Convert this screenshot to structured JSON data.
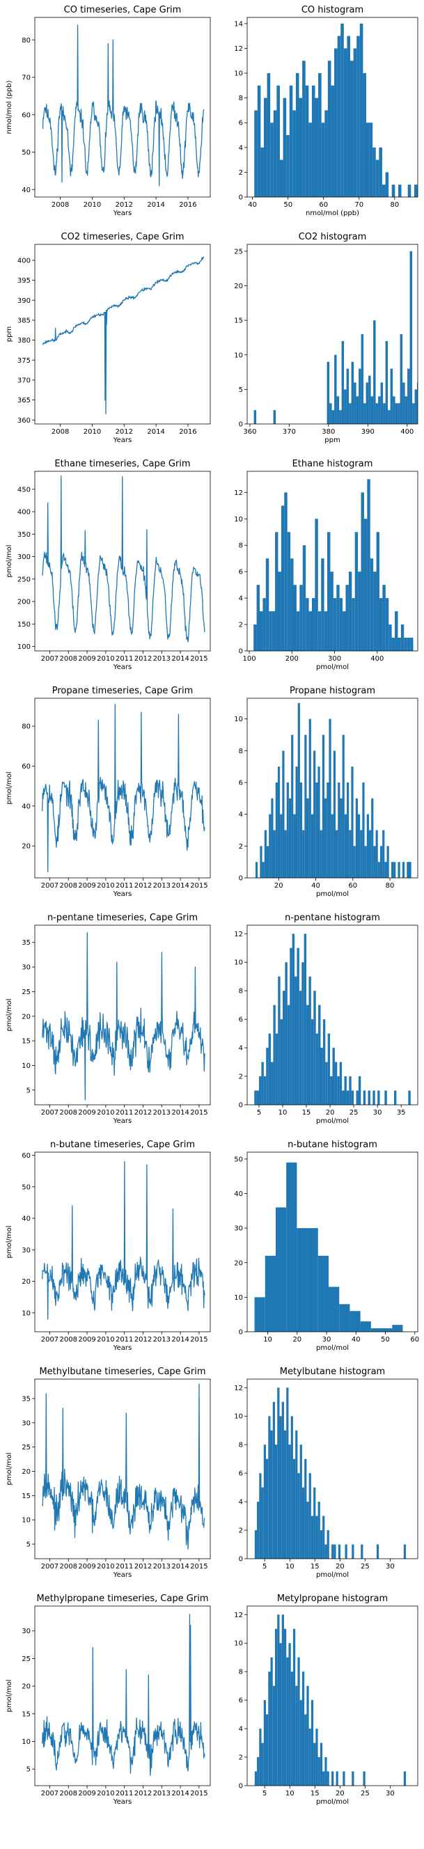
{
  "colors": {
    "series": "#1f77b4",
    "axis": "#000000",
    "background": "#ffffff"
  },
  "chart_data": [
    {
      "type": "line",
      "title": "CO timeseries, Cape Grim",
      "xlabel": "Years",
      "ylabel": "nmol/mol (ppb)",
      "xlim": [
        2006.4,
        2017.4
      ],
      "ylim": [
        38,
        86
      ],
      "xticks": [
        2008,
        2010,
        2012,
        2014,
        2016
      ],
      "yticks": [
        40,
        50,
        60,
        70,
        80
      ],
      "generator": {
        "kind": "seasonal",
        "t0": 2006.9,
        "t1": 2017.0,
        "n": 430,
        "base": 55,
        "trend": 0,
        "amp": 8,
        "period": 1.0,
        "noise": 3.0,
        "seed": 11
      },
      "spikes": [
        [
          2009.1,
          84
        ],
        [
          2011.0,
          79
        ],
        [
          2011.3,
          80
        ],
        [
          2008.1,
          42
        ],
        [
          2014.2,
          41
        ]
      ]
    },
    {
      "type": "histogram",
      "title": "CO histogram",
      "xlabel": "nmol/mol (ppb)",
      "ylabel": "",
      "xlim": [
        38.5,
        86.5
      ],
      "ylim": [
        0,
        14.5
      ],
      "xticks": [
        40,
        50,
        60,
        70,
        80
      ],
      "yticks": [
        0,
        2,
        4,
        6,
        8,
        10,
        12,
        14
      ],
      "bin_start": 40.5,
      "bin_width": 0.9,
      "counts": [
        7,
        9,
        4,
        8,
        10,
        6,
        7,
        9,
        3,
        8,
        5,
        9,
        7,
        10,
        8,
        11,
        9,
        6,
        9,
        8,
        10,
        6,
        7,
        11,
        9,
        12,
        13,
        14,
        12,
        13,
        11,
        12,
        13,
        14,
        10,
        6,
        6,
        4,
        3,
        4,
        1,
        2,
        0,
        1,
        0,
        1,
        0,
        0,
        1,
        0,
        1,
        0,
        0,
        0,
        1,
        0,
        0,
        0,
        0,
        1,
        0,
        0,
        0,
        0,
        0,
        0,
        1,
        0,
        0,
        0,
        1,
        0,
        0,
        1,
        0,
        0,
        0,
        0,
        0,
        0,
        0,
        0,
        0,
        0,
        0,
        0,
        0,
        0,
        0,
        0,
        0,
        0,
        0,
        0,
        0,
        0,
        0,
        0,
        0,
        0,
        0,
        0,
        0,
        0,
        1
      ]
    },
    {
      "type": "line",
      "title": "CO2 timeseries, Cape Grim",
      "xlabel": "Years",
      "ylabel": "ppm",
      "xlim": [
        2006.4,
        2017.4
      ],
      "ylim": [
        359,
        404
      ],
      "xticks": [
        2008,
        2010,
        2012,
        2014,
        2016
      ],
      "yticks": [
        360,
        365,
        370,
        375,
        380,
        385,
        390,
        395,
        400
      ],
      "generator": {
        "kind": "seasonal",
        "t0": 2006.9,
        "t1": 2017.0,
        "n": 420,
        "base": 378.8,
        "trend": 2.15,
        "amp": 0.4,
        "period": 1.0,
        "noise": 0.5,
        "seed": 23
      },
      "spikes": [
        [
          2010.8,
          365
        ],
        [
          2010.85,
          361.5
        ],
        [
          2010.9,
          384
        ],
        [
          2007.7,
          383
        ]
      ]
    },
    {
      "type": "histogram",
      "title": "CO2 histogram",
      "xlabel": "ppm",
      "ylabel": "",
      "xlim": [
        359.3,
        402.7
      ],
      "ylim": [
        0,
        26
      ],
      "xticks": [
        360,
        370,
        380,
        390,
        400
      ],
      "yticks": [
        0,
        5,
        10,
        15,
        20,
        25
      ],
      "bin_start": 361,
      "bin_width": 0.62,
      "counts": [
        2,
        0,
        0,
        0,
        0,
        0,
        0,
        0,
        2,
        0,
        0,
        0,
        0,
        0,
        0,
        0,
        0,
        0,
        0,
        0,
        0,
        0,
        0,
        0,
        0,
        0,
        0,
        0,
        0,
        0,
        9,
        3,
        2,
        10,
        4,
        2,
        12,
        5,
        8,
        3,
        9,
        6,
        4,
        8,
        13,
        3,
        6,
        7,
        4,
        15,
        3,
        4,
        6,
        3,
        12,
        2,
        8,
        4,
        3,
        3,
        13,
        6,
        4,
        8,
        25,
        3,
        5,
        6,
        10,
        4,
        9,
        3,
        7,
        4,
        15,
        4,
        3,
        6,
        4,
        5
      ]
    },
    {
      "type": "line",
      "title": "Ethane timeseries, Cape Grim",
      "xlabel": "Years",
      "ylabel": "pmol/mol",
      "xlim": [
        2006.2,
        2015.6
      ],
      "ylim": [
        90,
        490
      ],
      "xticks": [
        2007,
        2008,
        2009,
        2010,
        2011,
        2012,
        2013,
        2014,
        2015
      ],
      "yticks": [
        100,
        150,
        200,
        250,
        300,
        350,
        400,
        450
      ],
      "generator": {
        "kind": "seasonal",
        "t0": 2006.6,
        "t1": 2015.3,
        "n": 380,
        "base": 240,
        "trend": -3,
        "amp": 75,
        "period": 1.0,
        "noise": 18,
        "seed": 37
      },
      "spikes": [
        [
          2006.9,
          420
        ],
        [
          2007.6,
          480
        ],
        [
          2010.9,
          478
        ],
        [
          2012.2,
          360
        ],
        [
          2008.9,
          358
        ]
      ]
    },
    {
      "type": "histogram",
      "title": "Ethane histogram",
      "xlabel": "pmol/mol",
      "ylabel": "",
      "xlim": [
        95,
        495
      ],
      "ylim": [
        0,
        13.6
      ],
      "xticks": [
        100,
        200,
        300,
        400
      ],
      "yticks": [
        0,
        2,
        4,
        6,
        8,
        10,
        12
      ],
      "bin_start": 110,
      "bin_width": 7.2,
      "counts": [
        2,
        5,
        3,
        4,
        7,
        3,
        3,
        9,
        6,
        11,
        12,
        9,
        7,
        5,
        3,
        5,
        8,
        4,
        3,
        4,
        10,
        3,
        7,
        3,
        9,
        6,
        4,
        5,
        4,
        3,
        5,
        6,
        4,
        9,
        6,
        12,
        10,
        13,
        7,
        6,
        9,
        4,
        5,
        4,
        2,
        1,
        3,
        1,
        2,
        1,
        1,
        1,
        0,
        0,
        1,
        0,
        0,
        1,
        0,
        0,
        0,
        0,
        0,
        0,
        0,
        0,
        0,
        0,
        0,
        0,
        1
      ]
    },
    {
      "type": "line",
      "title": "Propane timeseries, Cape Grim",
      "xlabel": "Years",
      "ylabel": "pmol/mol",
      "xlim": [
        2006.2,
        2015.6
      ],
      "ylim": [
        4,
        94
      ],
      "xticks": [
        2007,
        2008,
        2009,
        2010,
        2011,
        2012,
        2013,
        2014,
        2015
      ],
      "yticks": [
        20,
        40,
        60,
        80
      ],
      "generator": {
        "kind": "seasonal",
        "t0": 2006.6,
        "t1": 2015.3,
        "n": 380,
        "base": 40,
        "trend": 0,
        "amp": 12,
        "period": 1.0,
        "noise": 9,
        "seed": 53
      },
      "spikes": [
        [
          2010.5,
          91
        ],
        [
          2011.9,
          87
        ],
        [
          2006.9,
          7
        ],
        [
          2013.9,
          86
        ],
        [
          2009.6,
          83
        ]
      ]
    },
    {
      "type": "histogram",
      "title": "Propane histogram",
      "xlabel": "pmol/mol",
      "ylabel": "",
      "xlim": [
        3,
        95
      ],
      "ylim": [
        0,
        11.3
      ],
      "xticks": [
        20,
        40,
        60,
        80
      ],
      "yticks": [
        0,
        2,
        4,
        6,
        8,
        10
      ],
      "bin_start": 7.5,
      "bin_width": 1.2,
      "counts": [
        1,
        0,
        2,
        1,
        3,
        2,
        4,
        5,
        3,
        6,
        7,
        4,
        8,
        3,
        6,
        5,
        9,
        4,
        7,
        11,
        6,
        3,
        9,
        5,
        10,
        4,
        8,
        6,
        7,
        3,
        9,
        5,
        6,
        10,
        4,
        8,
        3,
        6,
        5,
        9,
        4,
        6,
        3,
        7,
        2,
        5,
        4,
        3,
        6,
        2,
        4,
        3,
        5,
        2,
        3,
        1,
        2,
        3,
        1,
        2,
        0,
        1,
        1,
        0,
        1,
        0,
        1,
        0,
        1,
        1
      ]
    },
    {
      "type": "line",
      "title": "n-pentane timeseries, Cape Grim",
      "xlabel": "Years",
      "ylabel": "pmol/mol",
      "xlim": [
        2006.2,
        2015.6
      ],
      "ylim": [
        2,
        38.5
      ],
      "xticks": [
        2007,
        2008,
        2009,
        2010,
        2011,
        2012,
        2013,
        2014,
        2015
      ],
      "yticks": [
        5,
        10,
        15,
        20,
        25,
        30,
        35
      ],
      "generator": {
        "kind": "seasonal",
        "t0": 2006.6,
        "t1": 2015.3,
        "n": 380,
        "base": 15,
        "trend": 0,
        "amp": 3,
        "period": 1.0,
        "noise": 5,
        "seed": 71
      },
      "spikes": [
        [
          2009.0,
          37
        ],
        [
          2013.0,
          33
        ],
        [
          2010.6,
          31
        ],
        [
          2014.8,
          30
        ],
        [
          2008.9,
          3
        ]
      ]
    },
    {
      "type": "histogram",
      "title": "n-pentane histogram",
      "xlabel": "pmol/mol",
      "ylabel": "",
      "xlim": [
        2.5,
        38.5
      ],
      "ylim": [
        0,
        12.6
      ],
      "xticks": [
        5,
        10,
        15,
        20,
        25,
        30,
        35
      ],
      "yticks": [
        0,
        2,
        4,
        6,
        8,
        10,
        12
      ],
      "bin_start": 4,
      "bin_width": 0.5,
      "counts": [
        1,
        1,
        2,
        3,
        2,
        4,
        5,
        3,
        7,
        5,
        9,
        6,
        8,
        10,
        7,
        11,
        12,
        9,
        11,
        8,
        10,
        12,
        7,
        9,
        6,
        8,
        5,
        7,
        4,
        6,
        3,
        5,
        2,
        4,
        3,
        2,
        3,
        1,
        2,
        1,
        2,
        1,
        0,
        1,
        2,
        0,
        1,
        0,
        1,
        0,
        1,
        0,
        1,
        0,
        0,
        1,
        0,
        0,
        0,
        1,
        0,
        0,
        0,
        0,
        0,
        1
      ]
    },
    {
      "type": "line",
      "title": "n-butane timeseries, Cape Grim",
      "xlabel": "Years",
      "ylabel": "pmol/mol",
      "xlim": [
        2006.2,
        2015.6
      ],
      "ylim": [
        4,
        61
      ],
      "xticks": [
        2007,
        2008,
        2009,
        2010,
        2011,
        2012,
        2013,
        2014,
        2015
      ],
      "yticks": [
        10,
        20,
        30,
        40,
        50,
        60
      ],
      "generator": {
        "kind": "seasonal",
        "t0": 2006.6,
        "t1": 2015.3,
        "n": 380,
        "base": 20,
        "trend": 0,
        "amp": 4,
        "period": 1.0,
        "noise": 7,
        "seed": 89
      },
      "spikes": [
        [
          2011.0,
          58
        ],
        [
          2012.2,
          57
        ],
        [
          2008.2,
          44
        ],
        [
          2013.6,
          43
        ],
        [
          2006.9,
          8
        ]
      ]
    },
    {
      "type": "histogram",
      "title": "n-butane histogram",
      "xlabel": "pmol/mol",
      "ylabel": "",
      "xlim": [
        3,
        61
      ],
      "ylim": [
        0,
        52
      ],
      "xticks": [
        10,
        20,
        30,
        40,
        50,
        60
      ],
      "yticks": [
        0,
        10,
        20,
        30,
        40,
        50
      ],
      "bin_start": 5.5,
      "bin_width": 3.6,
      "counts": [
        10,
        22,
        36,
        49,
        30,
        30,
        22,
        13,
        8,
        6,
        3,
        1,
        1,
        2
      ]
    },
    {
      "type": "line",
      "title": "Methylbutane timeseries, Cape Grim",
      "xlabel": "Years",
      "ylabel": "pmol/mol",
      "xlim": [
        2006.2,
        2015.6
      ],
      "ylim": [
        2,
        39
      ],
      "xticks": [
        2007,
        2008,
        2009,
        2010,
        2011,
        2012,
        2013,
        2014,
        2015
      ],
      "yticks": [
        5,
        10,
        15,
        20,
        25,
        30,
        35
      ],
      "generator": {
        "kind": "seasonal",
        "t0": 2006.6,
        "t1": 2015.3,
        "n": 380,
        "base": 15,
        "trend": -0.4,
        "amp": 3,
        "period": 1.0,
        "noise": 5,
        "seed": 97
      },
      "spikes": [
        [
          2006.8,
          36
        ],
        [
          2015.0,
          38
        ],
        [
          2007.7,
          33
        ],
        [
          2014.4,
          4
        ],
        [
          2011.1,
          32
        ]
      ]
    },
    {
      "type": "histogram",
      "title": "Metylbutane histogram",
      "xlabel": "pmol/mol",
      "ylabel": "",
      "xlim": [
        1.5,
        35.5
      ],
      "ylim": [
        0,
        12.6
      ],
      "xticks": [
        5,
        10,
        15,
        20,
        25,
        30
      ],
      "yticks": [
        0,
        2,
        4,
        6,
        8,
        10,
        12
      ],
      "bin_start": 3,
      "bin_width": 0.45,
      "counts": [
        2,
        4,
        6,
        5,
        8,
        7,
        10,
        9,
        11,
        8,
        12,
        10,
        11,
        9,
        12,
        8,
        10,
        7,
        9,
        6,
        8,
        5,
        7,
        4,
        6,
        3,
        5,
        3,
        4,
        2,
        3,
        1,
        2,
        0,
        1,
        1,
        0,
        1,
        0,
        0,
        1,
        0,
        0,
        1,
        0,
        0,
        0,
        1,
        0,
        0,
        0,
        0,
        0,
        0,
        1,
        0,
        0,
        0,
        0,
        0,
        0,
        0,
        0,
        0,
        0,
        0,
        1
      ]
    },
    {
      "type": "line",
      "title": "Methylpropane timeseries, Cape Grim",
      "xlabel": "Years",
      "ylabel": "pmol/mol",
      "xlim": [
        2006.2,
        2015.6
      ],
      "ylim": [
        2,
        34.5
      ],
      "xticks": [
        2007,
        2008,
        2009,
        2010,
        2011,
        2012,
        2013,
        2014,
        2015
      ],
      "yticks": [
        5,
        10,
        15,
        20,
        25,
        30
      ],
      "generator": {
        "kind": "seasonal",
        "t0": 2006.6,
        "t1": 2015.3,
        "n": 380,
        "base": 10,
        "trend": 0,
        "amp": 2.5,
        "period": 1.0,
        "noise": 3.5,
        "seed": 113
      },
      "spikes": [
        [
          2014.5,
          33
        ],
        [
          2014.55,
          31
        ],
        [
          2009.3,
          27
        ],
        [
          2011.1,
          23
        ],
        [
          2012.3,
          22
        ]
      ]
    },
    {
      "type": "histogram",
      "title": "Metylpropane histogram",
      "xlabel": "pmol/mol",
      "ylabel": "",
      "xlim": [
        1.5,
        35.5
      ],
      "ylim": [
        0,
        12.6
      ],
      "xticks": [
        5,
        10,
        15,
        20,
        25,
        30
      ],
      "yticks": [
        0,
        2,
        4,
        6,
        8,
        10,
        12
      ],
      "bin_start": 3,
      "bin_width": 0.45,
      "counts": [
        1,
        2,
        4,
        3,
        6,
        5,
        8,
        9,
        7,
        11,
        12,
        10,
        12,
        11,
        9,
        10,
        8,
        11,
        7,
        9,
        6,
        8,
        5,
        7,
        4,
        6,
        3,
        4,
        2,
        3,
        1,
        2,
        1,
        0,
        1,
        0,
        1,
        0,
        0,
        1,
        0,
        0,
        0,
        1,
        0,
        0,
        0,
        0,
        1,
        0,
        0,
        0,
        0,
        0,
        0,
        0,
        0,
        0,
        0,
        0,
        0,
        0,
        0,
        0,
        0,
        0,
        1
      ]
    }
  ]
}
